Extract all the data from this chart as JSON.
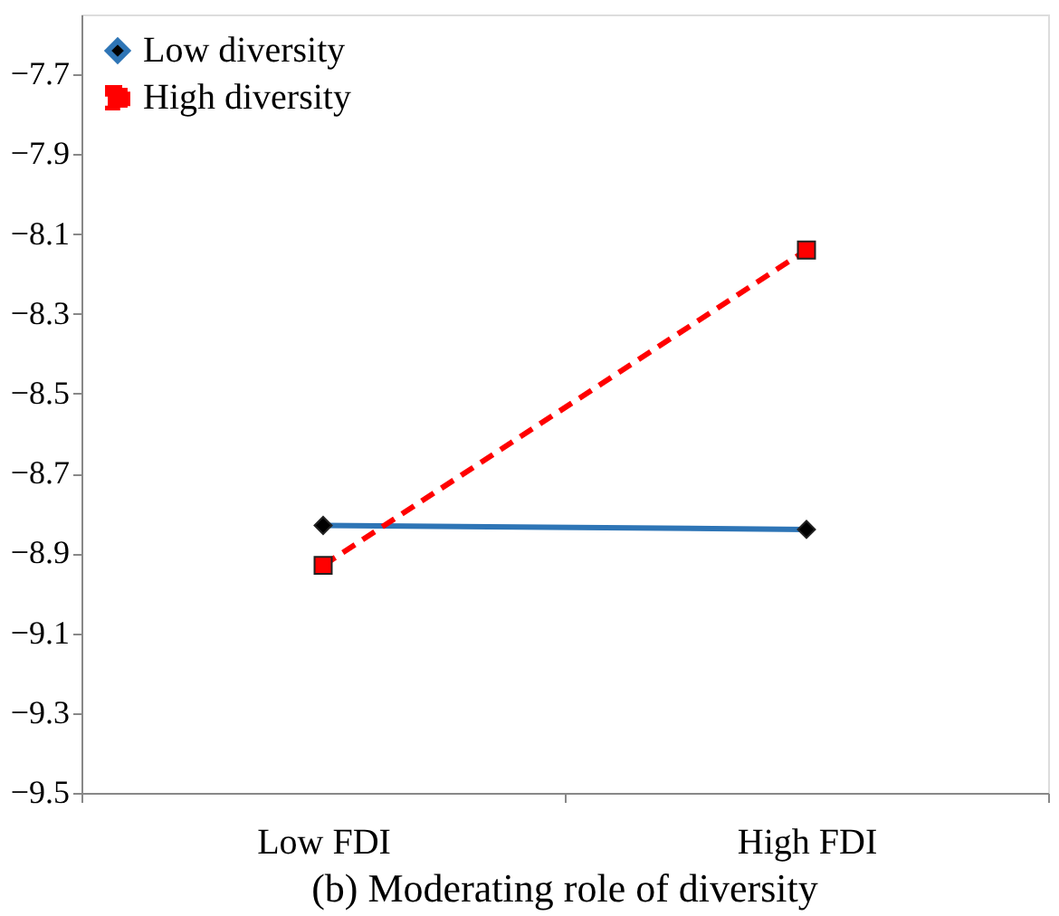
{
  "chart_data": {
    "type": "line",
    "title": "(b) Moderating role of diversity",
    "categories": [
      "Low FDI",
      "High FDI"
    ],
    "series": [
      {
        "name": "Low diversity",
        "color": "#2e75b6",
        "values": [
          -8.83,
          -8.84
        ],
        "marker": "diamond",
        "line_style": "solid"
      },
      {
        "name": "High diversity",
        "color": "#ff0000",
        "values": [
          -8.93,
          -8.14
        ],
        "marker": "square",
        "line_style": "dashed"
      }
    ],
    "ylim": [
      -9.5,
      -7.55
    ],
    "yticks": [
      -9.5,
      -9.3,
      -9.1,
      -8.9,
      -8.7,
      -8.5,
      -8.3,
      -8.1,
      -7.9,
      -7.7
    ],
    "grid": false,
    "legend": "top left"
  }
}
